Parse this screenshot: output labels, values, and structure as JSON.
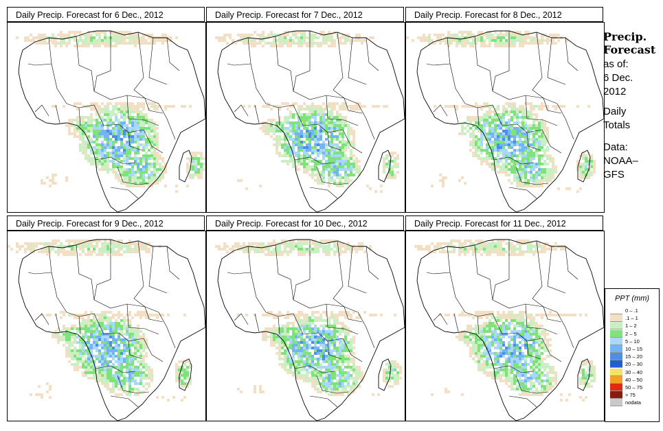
{
  "panels": [
    {
      "title": "Daily Precip. Forecast for  6 Dec., 2012"
    },
    {
      "title": "Daily Precip. Forecast for  7 Dec., 2012"
    },
    {
      "title": "Daily Precip. Forecast for  8 Dec., 2012"
    },
    {
      "title": "Daily Precip. Forecast for  9 Dec., 2012"
    },
    {
      "title": "Daily Precip. Forecast for  10 Dec., 2012"
    },
    {
      "title": "Daily Precip. Forecast for  11 Dec., 2012"
    }
  ],
  "sidebar": {
    "heading_line1": "Precip.",
    "heading_line2": "Forecast",
    "asof": "as of:",
    "date_line1": "6 Dec.",
    "date_line2": "2012",
    "totals_line1": "Daily",
    "totals_line2": "Totals",
    "data_line1": "Data:",
    "data_line2": "NOAA–",
    "data_line3": "GFS"
  },
  "legend": {
    "title": "PPT (mm)",
    "items": [
      {
        "label": "0 – .1",
        "color": "#ffffff"
      },
      {
        "label": ".1 – 1",
        "color": "#f2dfc4"
      },
      {
        "label": "1 – 2",
        "color": "#c8f0c2"
      },
      {
        "label": "2 – 5",
        "color": "#7fe27a"
      },
      {
        "label": "5 – 10",
        "color": "#a8d8ff"
      },
      {
        "label": "10 – 15",
        "color": "#72b4f4"
      },
      {
        "label": "15 – 20",
        "color": "#4a90e6"
      },
      {
        "label": "20 – 30",
        "color": "#1f5fd0"
      },
      {
        "label": "30 – 40",
        "color": "#f3e26a"
      },
      {
        "label": "40 – 50",
        "color": "#f4a020"
      },
      {
        "label": "50 – 75",
        "color": "#e02a12"
      },
      {
        "label": "> 75",
        "color": "#8b1a10"
      },
      {
        "label": "nodata",
        "color": "#c9c9c9"
      }
    ]
  }
}
